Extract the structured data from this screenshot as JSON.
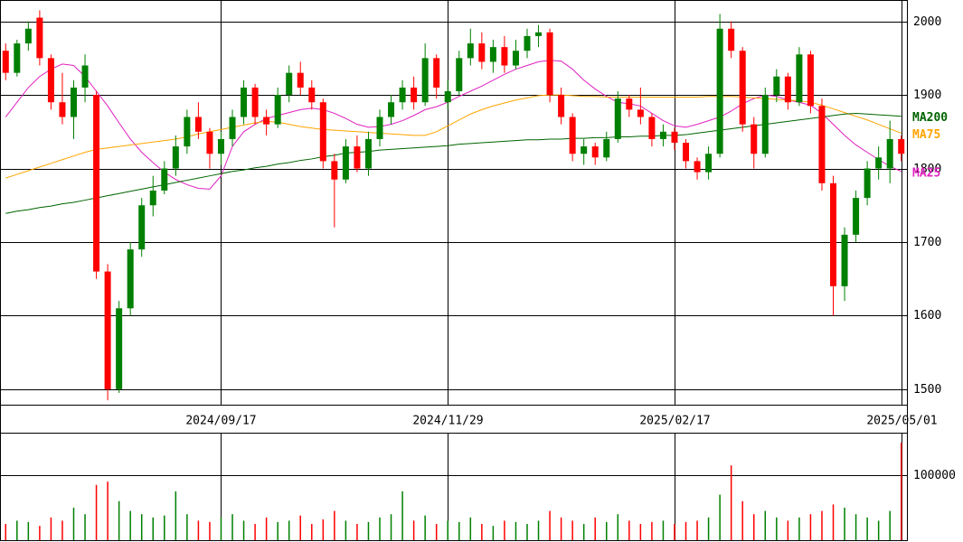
{
  "chart_data": {
    "type": "candlestick",
    "categories": [
      null,
      null,
      null,
      null,
      null,
      null,
      null,
      null,
      null,
      null,
      null,
      null,
      null,
      null,
      null,
      null,
      null,
      null,
      null,
      "2024/09/17",
      null,
      null,
      null,
      null,
      null,
      null,
      null,
      null,
      null,
      null,
      null,
      null,
      null,
      null,
      null,
      null,
      null,
      null,
      null,
      "2024/11/29",
      null,
      null,
      null,
      null,
      null,
      null,
      null,
      null,
      null,
      null,
      null,
      null,
      null,
      null,
      null,
      null,
      null,
      null,
      null,
      "2025/02/17",
      null,
      null,
      null,
      null,
      null,
      null,
      null,
      null,
      null,
      null,
      null,
      null,
      null,
      null,
      null,
      null,
      null,
      null,
      null,
      "2025/05/01"
    ],
    "candles": [
      [
        1960,
        1970,
        1920,
        1930
      ],
      [
        1930,
        1975,
        1925,
        1970
      ],
      [
        1970,
        2000,
        1960,
        1990
      ],
      [
        2005,
        2015,
        1940,
        1950
      ],
      [
        1950,
        1955,
        1880,
        1890
      ],
      [
        1890,
        1930,
        1860,
        1870
      ],
      [
        1870,
        1920,
        1840,
        1910
      ],
      [
        1910,
        1955,
        1890,
        1940
      ],
      [
        1900,
        1905,
        1650,
        1660
      ],
      [
        1660,
        1670,
        1485,
        1500
      ],
      [
        1500,
        1620,
        1495,
        1610
      ],
      [
        1610,
        1700,
        1600,
        1690
      ],
      [
        1690,
        1760,
        1680,
        1750
      ],
      [
        1750,
        1790,
        1735,
        1770
      ],
      [
        1770,
        1810,
        1765,
        1800
      ],
      [
        1800,
        1845,
        1790,
        1830
      ],
      [
        1830,
        1880,
        1820,
        1870
      ],
      [
        1870,
        1890,
        1840,
        1850
      ],
      [
        1850,
        1855,
        1800,
        1820
      ],
      [
        1820,
        1850,
        1805,
        1840
      ],
      [
        1840,
        1880,
        1830,
        1870
      ],
      [
        1870,
        1920,
        1860,
        1910
      ],
      [
        1910,
        1915,
        1860,
        1870
      ],
      [
        1870,
        1880,
        1845,
        1860
      ],
      [
        1860,
        1910,
        1855,
        1900
      ],
      [
        1900,
        1940,
        1890,
        1930
      ],
      [
        1930,
        1945,
        1900,
        1910
      ],
      [
        1910,
        1920,
        1880,
        1890
      ],
      [
        1890,
        1895,
        1800,
        1810
      ],
      [
        1810,
        1820,
        1720,
        1785
      ],
      [
        1785,
        1840,
        1780,
        1830
      ],
      [
        1830,
        1845,
        1795,
        1800
      ],
      [
        1800,
        1850,
        1790,
        1840
      ],
      [
        1840,
        1880,
        1830,
        1870
      ],
      [
        1870,
        1900,
        1860,
        1890
      ],
      [
        1890,
        1920,
        1880,
        1910
      ],
      [
        1910,
        1925,
        1880,
        1890
      ],
      [
        1890,
        1970,
        1885,
        1950
      ],
      [
        1950,
        1955,
        1895,
        1910
      ],
      [
        1890,
        1920,
        1880,
        1905
      ],
      [
        1905,
        1960,
        1900,
        1950
      ],
      [
        1950,
        1990,
        1940,
        1970
      ],
      [
        1970,
        1985,
        1935,
        1945
      ],
      [
        1945,
        1975,
        1930,
        1965
      ],
      [
        1965,
        1980,
        1930,
        1940
      ],
      [
        1940,
        1975,
        1935,
        1960
      ],
      [
        1960,
        1990,
        1950,
        1980
      ],
      [
        1980,
        1995,
        1965,
        1985
      ],
      [
        1985,
        1990,
        1890,
        1900
      ],
      [
        1900,
        1910,
        1860,
        1870
      ],
      [
        1870,
        1875,
        1810,
        1820
      ],
      [
        1820,
        1840,
        1805,
        1830
      ],
      [
        1830,
        1835,
        1805,
        1815
      ],
      [
        1815,
        1850,
        1810,
        1840
      ],
      [
        1840,
        1905,
        1835,
        1895
      ],
      [
        1895,
        1900,
        1870,
        1880
      ],
      [
        1880,
        1910,
        1860,
        1870
      ],
      [
        1870,
        1875,
        1830,
        1840
      ],
      [
        1840,
        1860,
        1830,
        1850
      ],
      [
        1850,
        1855,
        1825,
        1835
      ],
      [
        1835,
        1840,
        1800,
        1810
      ],
      [
        1810,
        1815,
        1785,
        1795
      ],
      [
        1795,
        1830,
        1785,
        1820
      ],
      [
        1820,
        2010,
        1815,
        1990
      ],
      [
        1990,
        2000,
        1950,
        1960
      ],
      [
        1960,
        1965,
        1850,
        1860
      ],
      [
        1860,
        1870,
        1800,
        1820
      ],
      [
        1820,
        1910,
        1815,
        1900
      ],
      [
        1900,
        1935,
        1890,
        1925
      ],
      [
        1925,
        1930,
        1880,
        1890
      ],
      [
        1890,
        1965,
        1885,
        1955
      ],
      [
        1955,
        1960,
        1875,
        1885
      ],
      [
        1885,
        1895,
        1770,
        1780
      ],
      [
        1780,
        1790,
        1600,
        1640
      ],
      [
        1640,
        1720,
        1620,
        1710
      ],
      [
        1710,
        1770,
        1700,
        1760
      ],
      [
        1760,
        1810,
        1750,
        1800
      ],
      [
        1800,
        1830,
        1785,
        1815
      ],
      [
        1800,
        1865,
        1780,
        1840
      ],
      [
        1840,
        1845,
        1810,
        1820
      ]
    ],
    "up_color": "#008000",
    "down_color": "#ff0000",
    "ylim": [
      1479,
      2029
    ],
    "yticks": [
      1500,
      1600,
      1700,
      1800,
      1900,
      2000
    ],
    "grid": true,
    "series": [
      {
        "name": "MA25",
        "color": "#e020c0",
        "values": [
          1870,
          1890,
          1910,
          1925,
          1935,
          1942,
          1940,
          1925,
          1905,
          1885,
          1862,
          1840,
          1822,
          1808,
          1795,
          1785,
          1778,
          1773,
          1772,
          1790,
          1830,
          1850,
          1860,
          1868,
          1872,
          1876,
          1880,
          1882,
          1880,
          1875,
          1868,
          1860,
          1856,
          1857,
          1860,
          1865,
          1872,
          1880,
          1884,
          1890,
          1898,
          1905,
          1912,
          1920,
          1928,
          1935,
          1940,
          1945,
          1947,
          1946,
          1935,
          1920,
          1908,
          1898,
          1890,
          1888,
          1885,
          1875,
          1865,
          1858,
          1856,
          1860,
          1865,
          1870,
          1878,
          1888,
          1895,
          1900,
          1898,
          1893,
          1890,
          1886,
          1875,
          1860,
          1845,
          1832,
          1822,
          1812,
          1803,
          1796
        ]
      },
      {
        "name": "MA75",
        "color": "#ffa500",
        "values": [
          1787,
          1792,
          1797,
          1802,
          1807,
          1812,
          1817,
          1822,
          1826,
          1828,
          1830,
          1832,
          1834,
          1836,
          1838,
          1840,
          1843,
          1847,
          1850,
          1853,
          1856,
          1859,
          1862,
          1864,
          1863,
          1860,
          1857,
          1855,
          1853,
          1852,
          1851,
          1850,
          1849,
          1848,
          1847,
          1846,
          1845,
          1845,
          1850,
          1858,
          1866,
          1874,
          1880,
          1885,
          1889,
          1893,
          1896,
          1899,
          1900,
          1900,
          1899,
          1898,
          1898,
          1897,
          1897,
          1897,
          1897,
          1897,
          1897,
          1897,
          1897,
          1897,
          1898,
          1898,
          1898,
          1897,
          1896,
          1895,
          1894,
          1893,
          1892,
          1890,
          1886,
          1881,
          1876,
          1871,
          1866,
          1860,
          1854,
          1848
        ]
      },
      {
        "name": "MA200",
        "color": "#006400",
        "values": [
          1739,
          1742,
          1744,
          1747,
          1749,
          1752,
          1754,
          1757,
          1760,
          1763,
          1766,
          1769,
          1772,
          1775,
          1778,
          1781,
          1784,
          1787,
          1790,
          1793,
          1796,
          1798,
          1801,
          1803,
          1806,
          1808,
          1811,
          1813,
          1816,
          1818,
          1821,
          1822,
          1823,
          1825,
          1826,
          1827,
          1828,
          1829,
          1830,
          1831,
          1833,
          1834,
          1835,
          1836,
          1837,
          1838,
          1839,
          1839,
          1840,
          1840,
          1841,
          1841,
          1842,
          1842,
          1843,
          1843,
          1844,
          1844,
          1845,
          1845,
          1846,
          1848,
          1850,
          1852,
          1854,
          1856,
          1858,
          1860,
          1862,
          1864,
          1866,
          1868,
          1870,
          1872,
          1874,
          1875,
          1874,
          1873,
          1872,
          1871
        ]
      }
    ],
    "volume": {
      "values": [
        25000,
        30000,
        28000,
        22000,
        35000,
        30000,
        50000,
        40000,
        85000,
        90000,
        60000,
        45000,
        40000,
        35000,
        38000,
        75000,
        40000,
        30000,
        28000,
        35000,
        40000,
        30000,
        25000,
        35000,
        28000,
        30000,
        38000,
        25000,
        32000,
        45000,
        30000,
        25000,
        28000,
        35000,
        40000,
        75000,
        30000,
        38000,
        25000,
        30000,
        28000,
        35000,
        25000,
        22000,
        30000,
        28000,
        25000,
        30000,
        45000,
        35000,
        30000,
        25000,
        35000,
        28000,
        40000,
        30000,
        25000,
        28000,
        30000,
        25000,
        28000,
        30000,
        35000,
        70000,
        115000,
        60000,
        40000,
        45000,
        35000,
        30000,
        35000,
        40000,
        45000,
        55000,
        50000,
        40000,
        35000,
        30000,
        45000,
        150000
      ],
      "ylim": [
        0,
        163900
      ],
      "yticks": [
        100000
      ]
    }
  }
}
